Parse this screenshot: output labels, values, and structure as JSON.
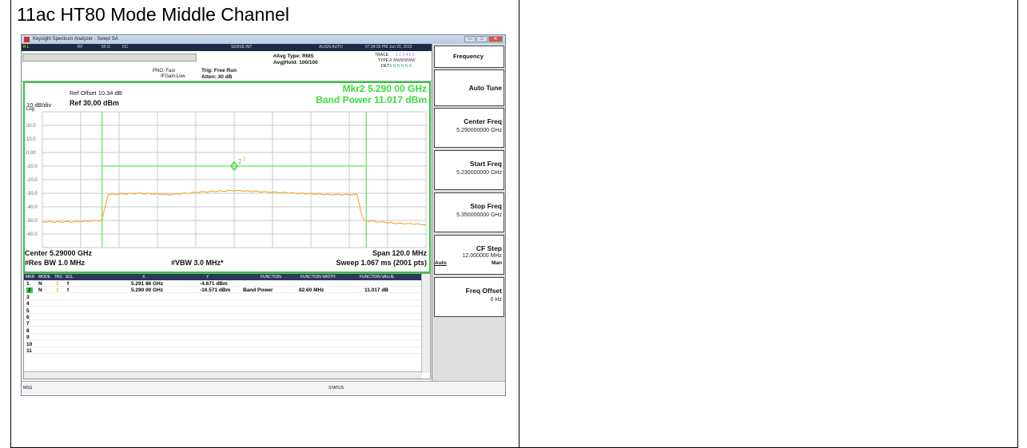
{
  "page": {
    "title": "11ac HT80 Mode Middle Channel"
  },
  "window": {
    "title": "Keysight Spectrum Analyzer - Swept SA",
    "buttons": {
      "minimize": "▭",
      "maximize": "□",
      "close": "✕"
    }
  },
  "status": {
    "rl": "R L",
    "rf": "RF",
    "impedance": "50 Ω",
    "coupling": "DC",
    "sense": "SENSE:INT",
    "align": "ALIGN AUTO",
    "datetime": "07:34:33 PM Jun 20, 2015"
  },
  "info": {
    "pno": "PNO: Fast",
    "ifgain": "IFGain:Low",
    "trig": "Trig: Free Run",
    "atten": "Atten: 30 dB",
    "avg_type": "#Avg Type: RMS",
    "avg_hold": "Avg|Hold: 100/100",
    "trace_label": "TRACE",
    "trace_nums": "1 2 3 4 5 6",
    "type_label": "TYPE",
    "type_val": "A WWWWWW",
    "det_label": "DET",
    "det_val": "A N N N N N"
  },
  "plot": {
    "ref_offset": "Ref Offset 10.34 dB",
    "scale": "10 dB/div",
    "ref": "Ref 30.00 dBm",
    "log": "Log",
    "marker_line1": "Mkr2 5.290 00 GHz",
    "marker_line2": "Band Power 11.017 dBm",
    "ytick_labels": [
      "20.0",
      "10.0",
      "0.00",
      "-10.0",
      "-20.0",
      "-30.0",
      "-40.0",
      "-50.0",
      "-60.0"
    ],
    "center": "Center 5.29000 GHz",
    "res_bw": "#Res BW 1.0 MHz",
    "vbw": "#VBW 3.0 MHz*",
    "span": "Span 120.0 MHz",
    "sweep": "Sweep  1.067 ms (2001 pts)",
    "marker_labels": [
      "2",
      "1"
    ]
  },
  "chart_data": {
    "type": "line",
    "x_unit": "GHz",
    "y_unit": "dBm",
    "xlim": [
      5.23,
      5.35
    ],
    "ylim": [
      -70,
      30
    ],
    "series": [
      {
        "x": [
          5.23,
          5.2395,
          5.2485,
          5.2495,
          5.2505,
          5.26,
          5.27,
          5.28,
          5.29,
          5.3,
          5.31,
          5.32,
          5.3285,
          5.3295,
          5.3305,
          5.34,
          5.35
        ],
        "y": [
          -51,
          -51,
          -50,
          -42,
          -31,
          -30,
          -31,
          -29,
          -28,
          -29,
          -30,
          -31,
          -31,
          -42,
          -50,
          -52,
          -53
        ]
      }
    ],
    "markers": [
      {
        "label": "1",
        "x": 5.29186,
        "y": -4.671
      },
      {
        "label": "2",
        "x": 5.29,
        "y": -10.571
      }
    ]
  },
  "table": {
    "headers": [
      "MKR",
      "MODE",
      "TRC",
      "SCL",
      "X",
      "Y",
      "FUNCTION",
      "FUNCTION WIDTH",
      "FUNCTION VALUE"
    ],
    "rows": [
      {
        "mkr": "1",
        "mode": "N",
        "trc": "1",
        "scl": "f",
        "x": "5.291 86 GHz",
        "y": "-4.671 dBm",
        "func": "",
        "width": "",
        "value": ""
      },
      {
        "mkr": "2",
        "mode": "N",
        "trc": "1",
        "scl": "f",
        "x": "5.290 00 GHz",
        "y": "-10.571 dBm",
        "func": "Band Power",
        "width": "82.60 MHz",
        "value": "11.017 dB"
      },
      {
        "mkr": "3"
      },
      {
        "mkr": "4"
      },
      {
        "mkr": "5"
      },
      {
        "mkr": "6"
      },
      {
        "mkr": "7"
      },
      {
        "mkr": "8"
      },
      {
        "mkr": "9"
      },
      {
        "mkr": "10"
      },
      {
        "mkr": "11"
      }
    ]
  },
  "msgbar": {
    "msg": "MSG",
    "status": "STATUS"
  },
  "softkeys": {
    "menu_title": "Frequency",
    "auto_tune": "Auto Tune",
    "center_freq": "Center Freq",
    "center_freq_val": "5.290000000 GHz",
    "start_freq": "Start Freq",
    "start_freq_val": "5.230000000 GHz",
    "stop_freq": "Stop Freq",
    "stop_freq_val": "5.350000000 GHz",
    "cf_step": "CF Step",
    "cf_step_val": "12.000000 MHz",
    "cf_auto": "Auto",
    "cf_man": "Man",
    "freq_offset": "Freq Offset",
    "freq_offset_val": "0 Hz"
  },
  "colors": {
    "trace": "#f0a020",
    "frame": "#2ecc40",
    "marker_text": "#3bdc3b"
  }
}
